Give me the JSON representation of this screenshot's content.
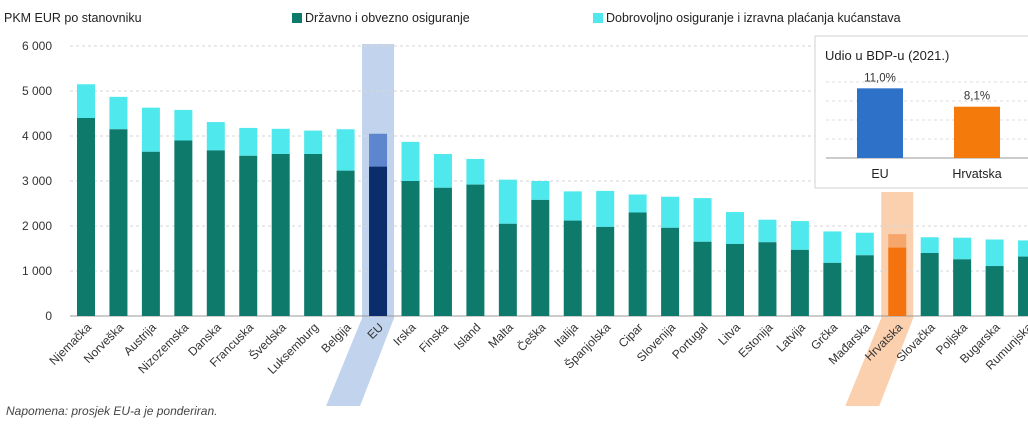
{
  "chart_data": [
    {
      "type": "bar",
      "stacked": true,
      "ylabel": "PKM EUR po stanovniku",
      "ylim": [
        0,
        6000
      ],
      "yticks": [
        "6 000",
        "5 000",
        "4 000",
        "3 000",
        "2 000",
        "1 000",
        "0"
      ],
      "categories": [
        "Njemačka",
        "Norveška",
        "Austrija",
        "Nizozemska",
        "Danska",
        "Francuska",
        "Švedska",
        "Luksemburg",
        "Belgija",
        "EU",
        "Irska",
        "Finska",
        "Island",
        "Malta",
        "Češka",
        "Italija",
        "Španjolska",
        "Cipar",
        "Slovenija",
        "Portugal",
        "Litva",
        "Estonija",
        "Latvija",
        "Grčka",
        "Mađarska",
        "Hrvatska",
        "Slovačka",
        "Poljska",
        "Bugarska",
        "Rumunjska"
      ],
      "series": [
        {
          "name": "Državno i obvezno osiguranje",
          "color": "#0e7a6c",
          "values": [
            4400,
            4150,
            3650,
            3900,
            3680,
            3560,
            3600,
            3600,
            3230,
            3320,
            3000,
            2850,
            2920,
            2050,
            2580,
            2120,
            1980,
            2300,
            1960,
            1650,
            1600,
            1640,
            1470,
            1180,
            1350,
            1520,
            1400,
            1260,
            1110,
            1320
          ]
        },
        {
          "name": "Dobrovoljno osiguranje i izravna plaćanja kućanstava",
          "color": "#4fe8ed",
          "values": [
            750,
            720,
            980,
            680,
            630,
            620,
            560,
            520,
            920,
            730,
            870,
            750,
            570,
            980,
            420,
            650,
            800,
            400,
            690,
            970,
            710,
            500,
            640,
            700,
            500,
            300,
            350,
            480,
            590,
            360
          ]
        }
      ],
      "highlight": {
        "EU": "#0c2d6b",
        "Hrvatska": "#f5730f"
      },
      "highlight_light": {
        "EU": "#5e86cf",
        "Hrvatska": "#f7a66b"
      },
      "legend": "top",
      "grid": "horizontal"
    },
    {
      "type": "bar",
      "title": "Udio u BDP-u (2021.)",
      "categories": [
        "EU",
        "Hrvatska"
      ],
      "values": [
        11.0,
        8.1
      ],
      "value_labels": [
        "11,0%",
        "8,1%"
      ],
      "colors": [
        "#2e71c8",
        "#f47a0b"
      ],
      "ylim": [
        0,
        12
      ]
    }
  ],
  "note": "Napomena: prosjek EU-a je ponderiran."
}
